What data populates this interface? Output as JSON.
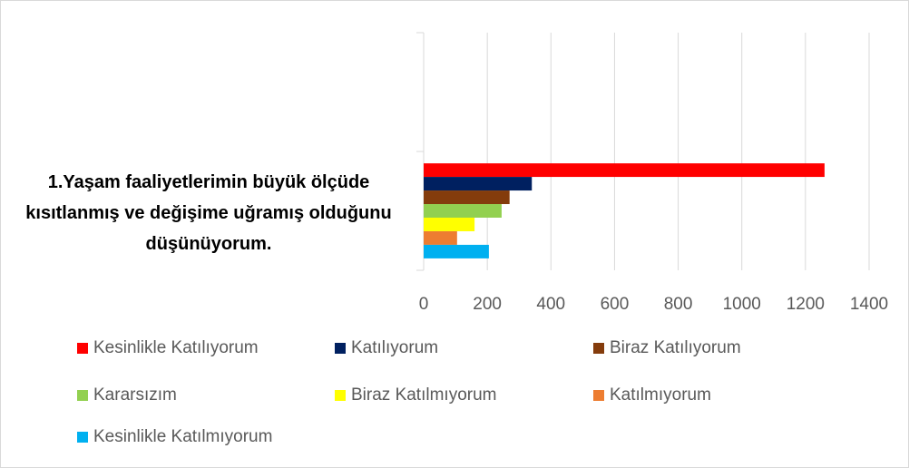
{
  "chart_data": {
    "type": "bar",
    "orientation": "horizontal",
    "categories": [
      "1.Yaşam faaliyetlerimin büyük ölçüde kısıtlanmış ve değişime uğramış olduğunu düşünüyorum.",
      null
    ],
    "series": [
      {
        "name": "Kesinlikle Katılıyorum",
        "color": "#ff0000",
        "values": [
          1260,
          null
        ]
      },
      {
        "name": "Katılıyorum",
        "color": "#002060",
        "values": [
          340,
          null
        ]
      },
      {
        "name": "Biraz Katılıyorum",
        "color": "#843c0c",
        "values": [
          270,
          null
        ]
      },
      {
        "name": "Kararsızım",
        "color": "#92d050",
        "values": [
          245,
          null
        ]
      },
      {
        "name": "Biraz Katılmıyorum",
        "color": "#ffff00",
        "values": [
          160,
          null
        ]
      },
      {
        "name": "Katılmıyorum",
        "color": "#ed7d31",
        "values": [
          105,
          null
        ]
      },
      {
        "name": "Kesinlikle Katılmıyorum",
        "color": "#00b0f0",
        "values": [
          205,
          null
        ]
      }
    ],
    "xlim": [
      0,
      1400
    ],
    "xticks": [
      0,
      200,
      400,
      600,
      800,
      1000,
      1200,
      1400
    ],
    "grid": true,
    "legend": "bottom"
  }
}
